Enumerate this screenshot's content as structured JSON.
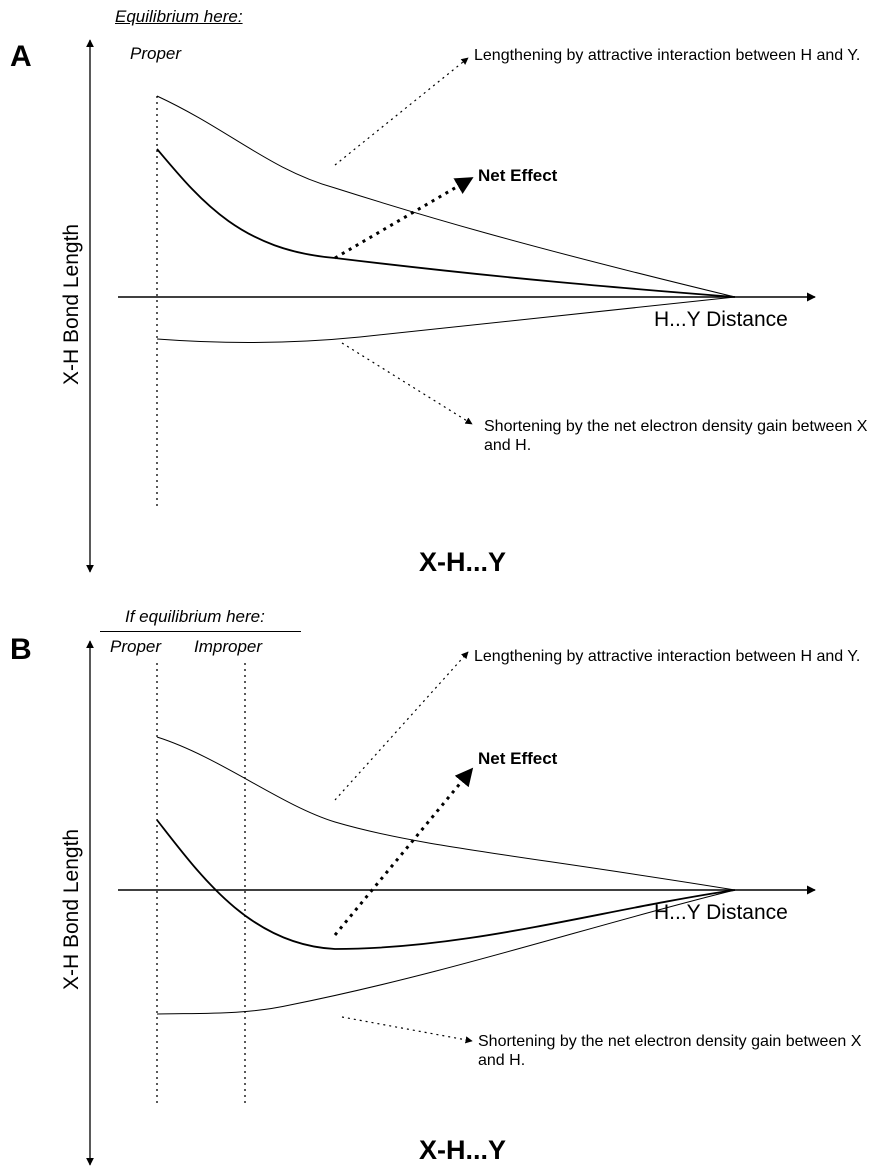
{
  "panels": [
    {
      "letter": "A",
      "equilibrium_heading": "Equilibrium here:",
      "columns": [
        "Proper"
      ],
      "lengthening_label": "Lengthening by attractive interaction between H and Y.",
      "net_effect_label": "Net Effect",
      "distance_axis_label": "H...Y Distance",
      "bond_axis_label": "X-H Bond Length",
      "shortening_label": "Shortening  by the net electron density gain between X and H.",
      "molecule_label": "X-H...Y"
    },
    {
      "letter": "B",
      "equilibrium_heading": "If equilibrium here:",
      "columns": [
        "Proper",
        "Improper"
      ],
      "lengthening_label": "Lengthening by attractive interaction between H and Y.",
      "net_effect_label": "Net Effect",
      "distance_axis_label": "H...Y Distance",
      "bond_axis_label": "X-H Bond Length",
      "shortening_label": "Shortening  by the net electron density gain between X and H.",
      "molecule_label": "X-H...Y"
    }
  ],
  "colors": {
    "line": "#000000",
    "background": "#ffffff"
  }
}
